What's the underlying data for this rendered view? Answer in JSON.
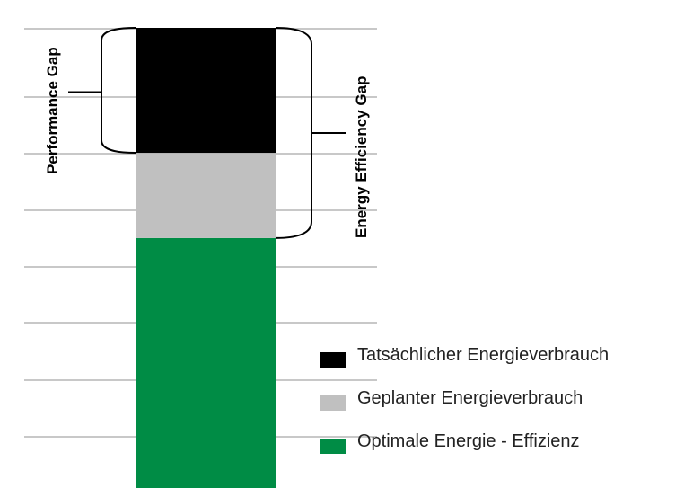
{
  "chart_data": {
    "type": "bar",
    "stacked": true,
    "categories": [
      ""
    ],
    "series": [
      {
        "name": "Optimale Energie - Effizienz",
        "values": [
          44
        ],
        "color": "#008c45"
      },
      {
        "name": "Geplanter Energieverbrauch",
        "values": [
          15
        ],
        "color": "#c0c0c0"
      },
      {
        "name": "Tatsächlicher Energieverbrauch",
        "values": [
          22
        ],
        "color": "#000000"
      }
    ],
    "ylim": [
      0,
      81
    ],
    "grid": true,
    "legend": "bottom-right",
    "annotations": [
      {
        "label": "Performance Gap",
        "spans": [
          "Tatsächlicher Energieverbrauch"
        ]
      },
      {
        "label": "Energy Efficiency Gap",
        "spans": [
          "Tatsächlicher Energieverbrauch",
          "Geplanter Energieverbrauch"
        ]
      }
    ]
  }
}
